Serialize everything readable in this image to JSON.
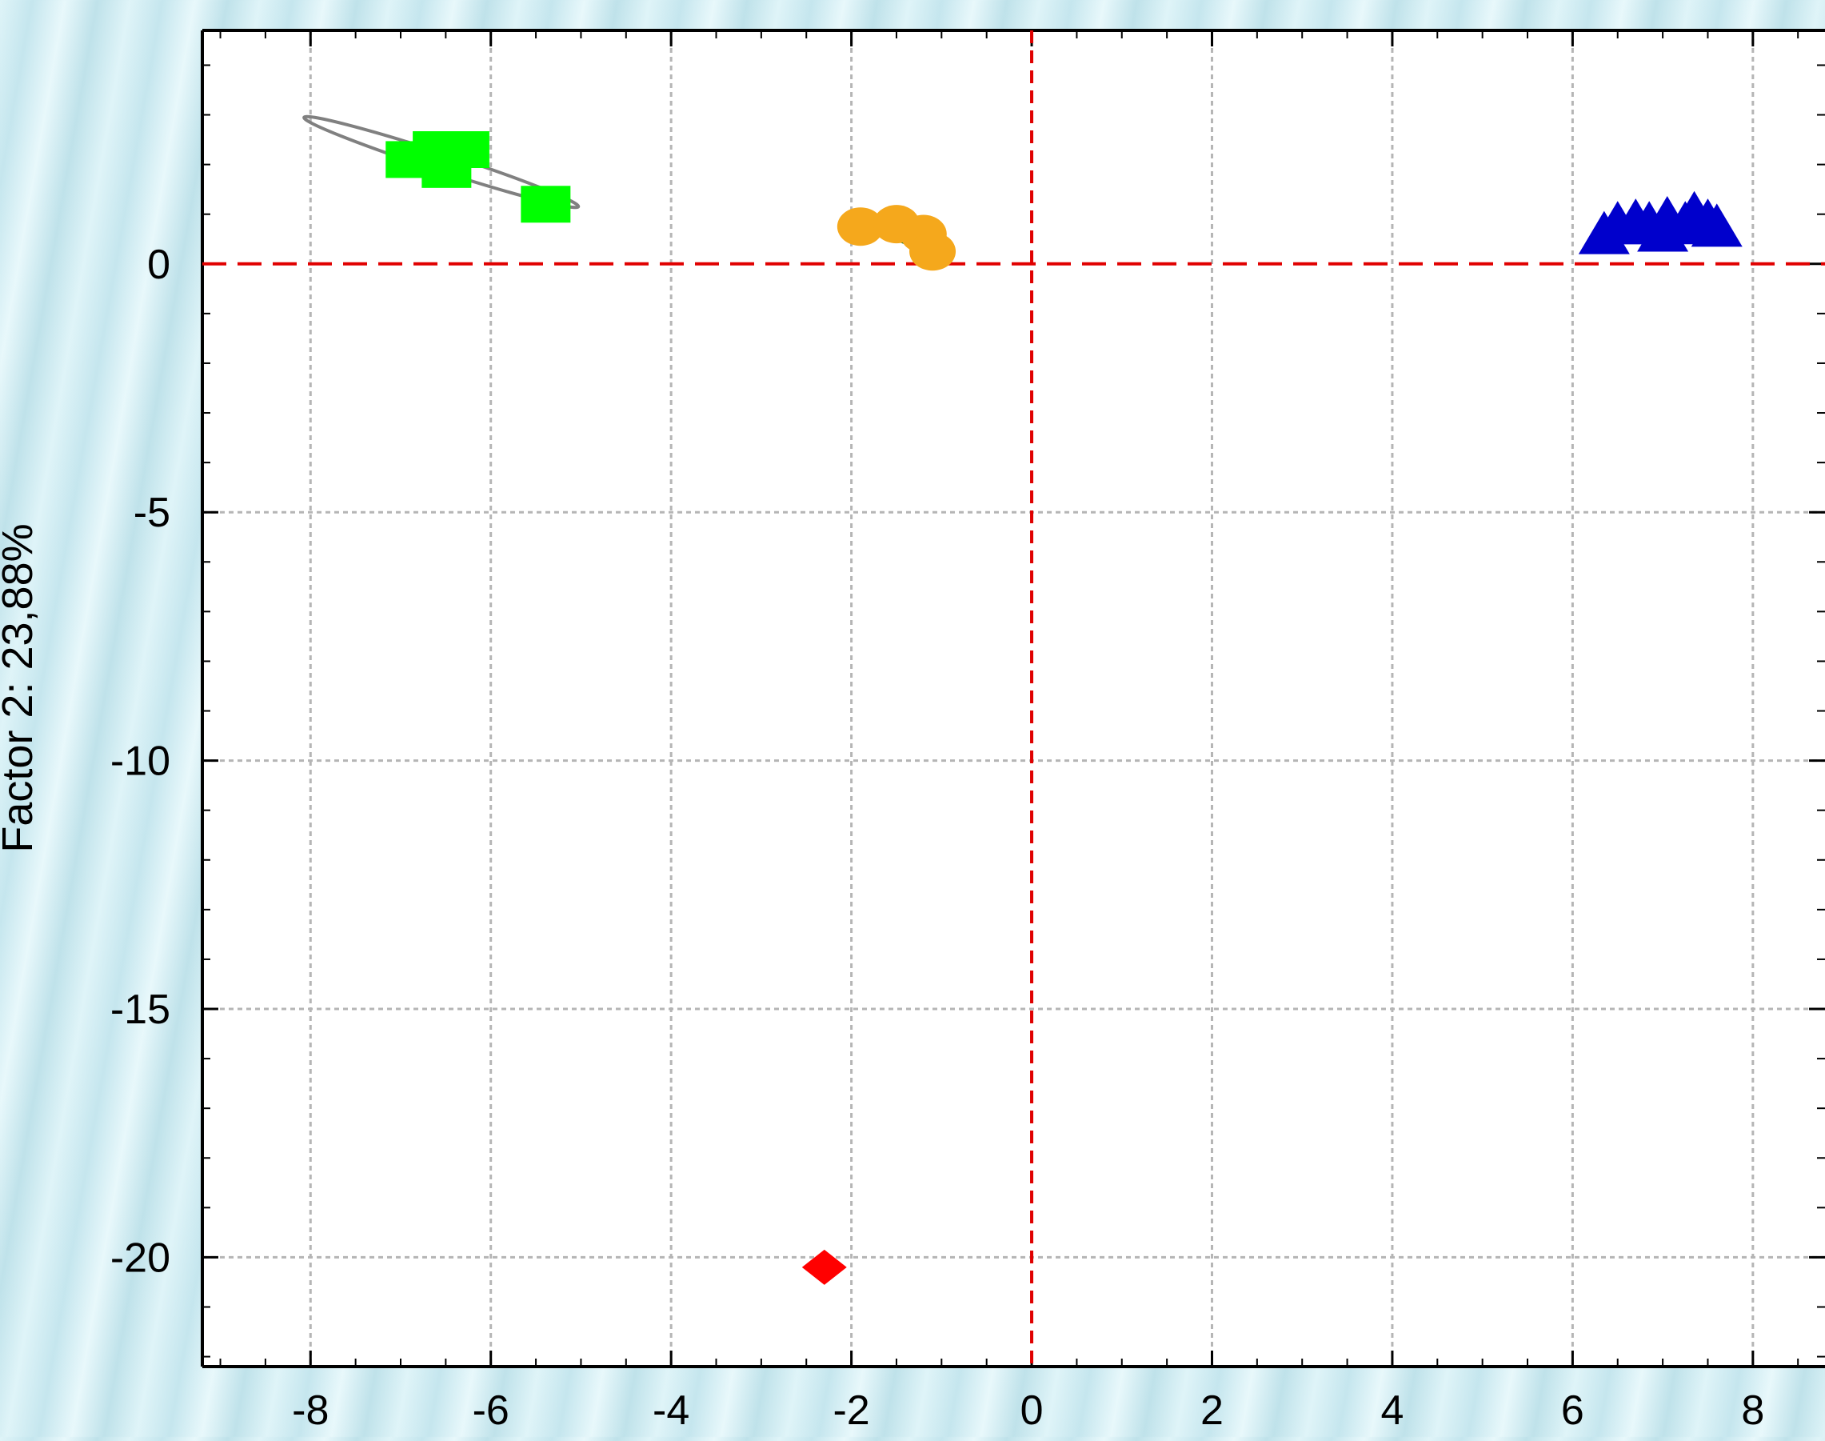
{
  "chart_data": {
    "type": "scatter",
    "title": "",
    "xlabel": "",
    "ylabel": "Factor 2: 23,88%",
    "xlim": [
      -9.2,
      8.8
    ],
    "ylim": [
      -22.2,
      4.7
    ],
    "x_ticks": [
      -8,
      -6,
      -4,
      -2,
      0,
      2,
      4,
      6,
      8
    ],
    "y_ticks": [
      0,
      -5,
      -10,
      -15,
      -20
    ],
    "x_tick_labels": [
      "-8",
      "-6",
      "-4",
      "-2",
      "0",
      "2",
      "4",
      "6",
      "8"
    ],
    "y_tick_labels": [
      "0",
      "-5",
      "-10",
      "-15",
      "-20"
    ],
    "grid": true,
    "reference_lines": {
      "x": 0,
      "y": 0,
      "color": "#e00000",
      "style": "dashed"
    },
    "series": [
      {
        "marker": "square",
        "color": "#00ff00",
        "points": [
          [
            -6.9,
            2.1
          ],
          [
            -6.6,
            2.3
          ],
          [
            -6.3,
            2.3
          ],
          [
            -6.5,
            1.9
          ],
          [
            -5.4,
            1.2
          ]
        ],
        "ellipse": {
          "cx": -6.55,
          "cy": 2.05,
          "rx": 1.6,
          "ry": 0.18,
          "angle_deg": 18,
          "color": "#808080"
        }
      },
      {
        "marker": "circle",
        "color": "#f5a81c",
        "points": [
          [
            -1.9,
            0.75
          ],
          [
            -1.5,
            0.8
          ],
          [
            -1.2,
            0.6
          ],
          [
            -1.1,
            0.25
          ]
        ],
        "ellipse": {
          "cx": -1.4,
          "cy": 0.55,
          "rx": 0.38,
          "ry": 0.12,
          "angle_deg": 20,
          "color": "#0b6e1f"
        }
      },
      {
        "marker": "triangle",
        "color": "#0000cc",
        "points": [
          [
            6.35,
            0.55
          ],
          [
            6.5,
            0.75
          ],
          [
            6.7,
            0.8
          ],
          [
            6.85,
            0.75
          ],
          [
            7.05,
            0.85
          ],
          [
            7.25,
            0.75
          ],
          [
            7.35,
            0.95
          ],
          [
            7.5,
            0.8
          ],
          [
            7.6,
            0.7
          ],
          [
            7.0,
            0.6
          ]
        ],
        "ellipse": {
          "cx": 6.95,
          "cy": 0.8,
          "rx": 0.6,
          "ry": 0.12,
          "angle_deg": 0,
          "color": "#ff33ff"
        }
      },
      {
        "marker": "diamond",
        "color": "#ff0000",
        "points": [
          [
            -2.3,
            -20.2
          ]
        ]
      }
    ]
  }
}
